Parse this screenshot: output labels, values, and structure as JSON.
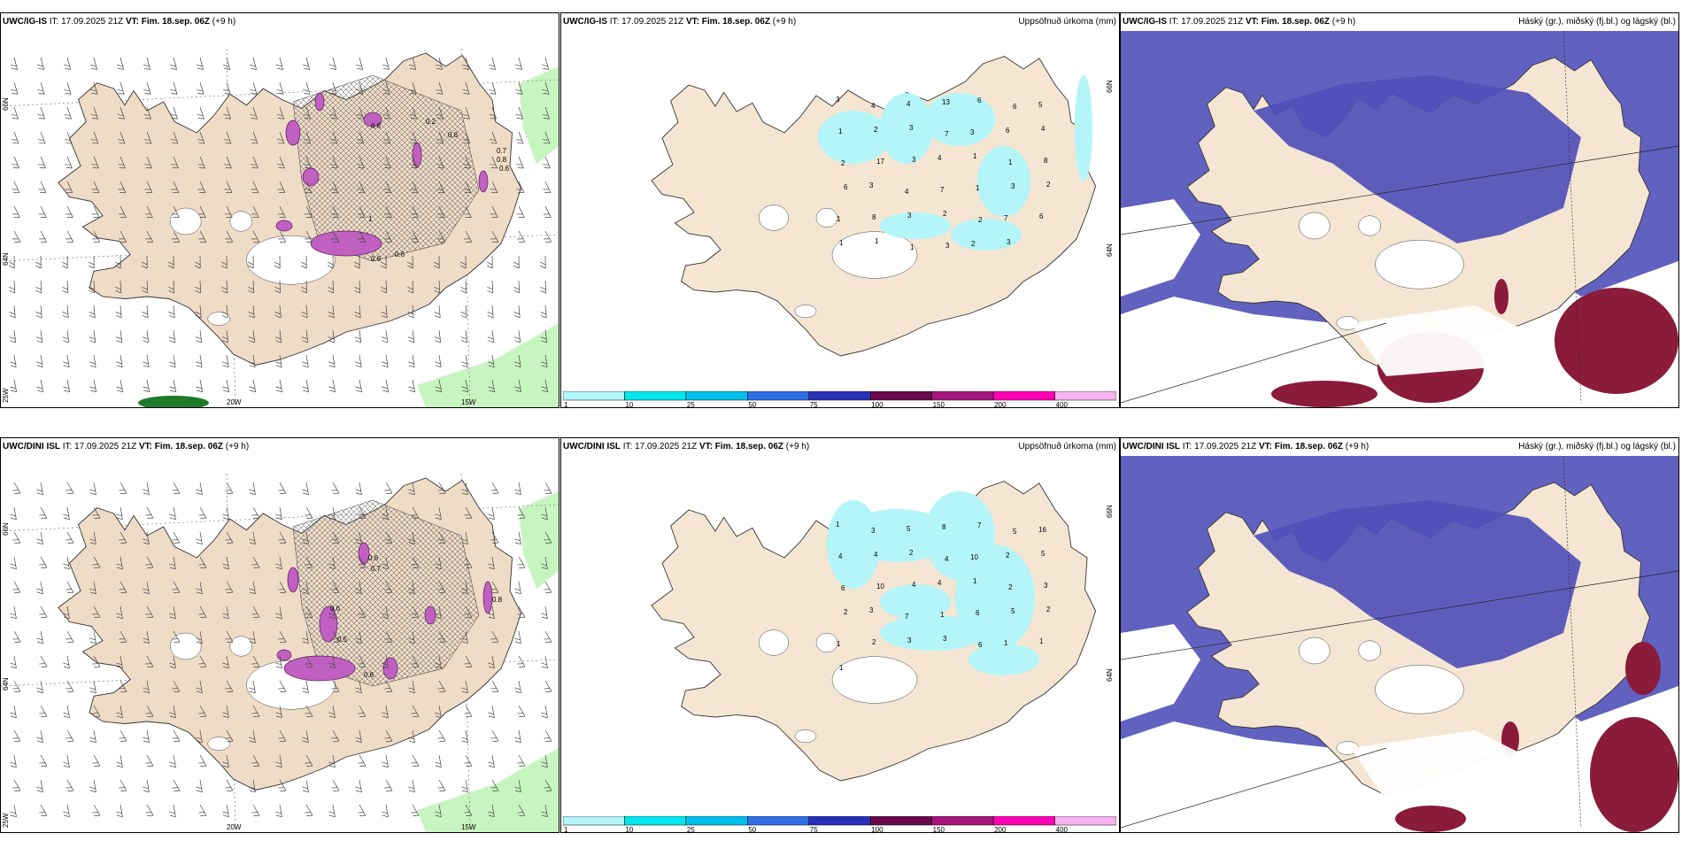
{
  "rows": [
    {
      "model": "UWC/IG-IS",
      "it_label": "IT:",
      "it_value": "17.09.2025 21Z",
      "vt_label": "VT:",
      "vt_value": "Fim. 18.sep. 06Z",
      "lead": "(+9 h)",
      "precip_values": [
        "3",
        "4",
        "4",
        "13",
        "6",
        "6",
        "5",
        "1",
        "2",
        "3",
        "7",
        "3",
        "6",
        "4",
        "2",
        "17",
        "3",
        "4",
        "1",
        "1",
        "8",
        "6",
        "3",
        "4",
        "7",
        "1",
        "3",
        "2",
        "1",
        "8",
        "3",
        "2",
        "2",
        "7",
        "6",
        "1",
        "1",
        "1",
        "3",
        "2",
        "3"
      ],
      "wind_pressure_labels": [
        "0.6",
        "0.6",
        "0.2",
        "0.7",
        "0.8",
        "0.6",
        "0.6",
        "1",
        "0.6"
      ]
    },
    {
      "model": "UWC/DINI ISL",
      "it_label": "IT:",
      "it_value": "17.09.2025 21Z",
      "vt_label": "VT:",
      "vt_value": "Fim. 18.sep. 06Z",
      "lead": "(+9 h)",
      "precip_values": [
        "1",
        "3",
        "5",
        "8",
        "7",
        "5",
        "16",
        "4",
        "4",
        "2",
        "4",
        "10",
        "2",
        "5",
        "6",
        "10",
        "4",
        "4",
        "1",
        "2",
        "3",
        "2",
        "3",
        "7",
        "1",
        "6",
        "5",
        "2",
        "1",
        "2",
        "3",
        "3",
        "6",
        "1",
        "1",
        "1"
      ],
      "wind_pressure_labels": [
        "0.6",
        "0.7",
        "0.6",
        "0.5",
        "0.6",
        "0.8"
      ]
    }
  ],
  "precip_title": "Uppsöfnuð úrkoma (mm)",
  "cloud_title": "Háský (gr.), miðský (fj.bl.) og lágský (bl.)",
  "axis": {
    "lat_66": "66N",
    "lat_64": "64N",
    "lon_25": "25W",
    "lon_20": "20W",
    "lon_15": "15W"
  },
  "colorbar": {
    "labels": [
      "1",
      "10",
      "25",
      "50",
      "75",
      "100",
      "150",
      "200",
      "400"
    ],
    "colors": [
      "#b3f5f8",
      "#00e6ec",
      "#00bfea",
      "#2f6fe5",
      "#2831b8",
      "#6a0a4a",
      "#a3167a",
      "#ff00b4",
      "#f7b3ef"
    ]
  },
  "colors": {
    "land": "#f5e6d3",
    "land_wind": "#efdcc6",
    "precip_light": "#b3f5f8",
    "cloud_high": "#5050b8",
    "cloud_low": "#8a1b3a",
    "wind_green": "#b9f2b0",
    "wind_magenta": "#c060c0"
  }
}
